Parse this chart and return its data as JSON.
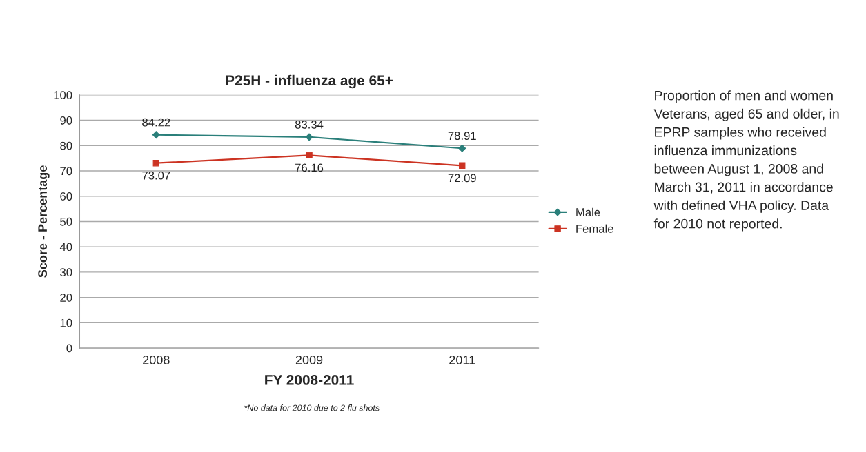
{
  "chart_data": {
    "type": "line",
    "title": "P25H - influenza age 65+",
    "xlabel": "FY 2008-2011",
    "ylabel": "Score - Percentage",
    "categories": [
      "2008",
      "2009",
      "2011"
    ],
    "series": [
      {
        "name": "Male",
        "color": "#2a7f7a",
        "marker": "diamond",
        "values": [
          84.22,
          83.34,
          78.91
        ]
      },
      {
        "name": "Female",
        "color": "#cc3322",
        "marker": "square",
        "values": [
          73.07,
          76.16,
          72.09
        ]
      }
    ],
    "ylim": [
      0,
      100
    ],
    "yticks": [
      0,
      10,
      20,
      30,
      40,
      50,
      60,
      70,
      80,
      90,
      100
    ],
    "grid": "y",
    "legend": "right",
    "data_labels": true,
    "line_style": "solid",
    "annotations": [
      "*No data for 2010 due to 2 flu shots",
      "Proportion of men and women Veterans, aged 65 and older, in EPRP samples who received influenza immunizations between August 1, 2008 and March 31, 2011 in accordance with defined VHA policy. Data for 2010 not reported."
    ]
  }
}
